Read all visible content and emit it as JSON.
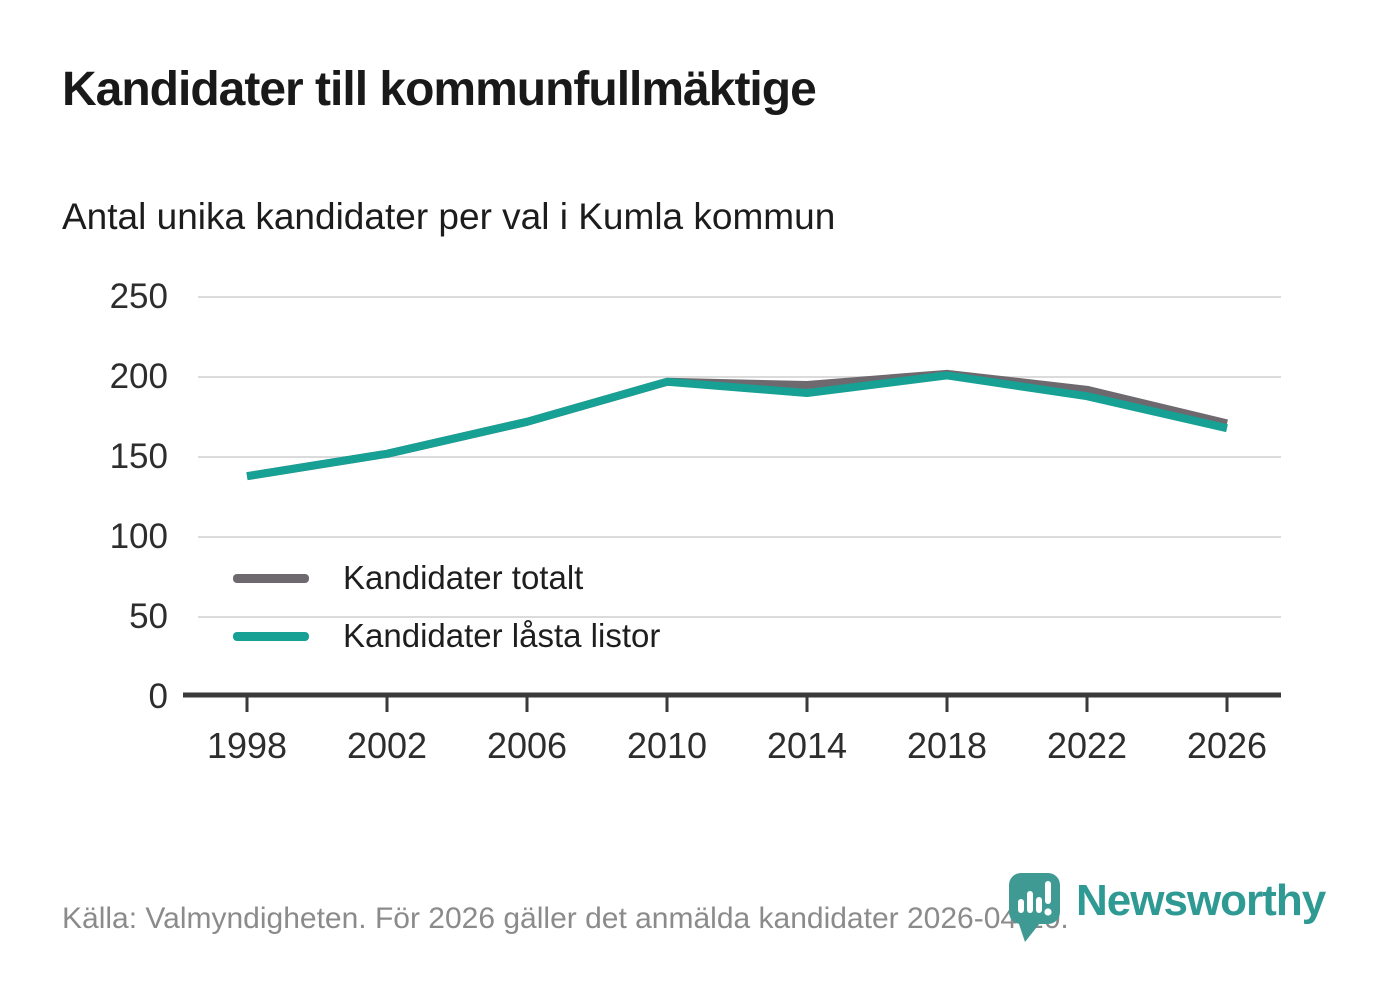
{
  "title": "Kandidater till kommunfullmäktige",
  "subtitle": "Antal unika kandidater per val i Kumla kommun",
  "source": "Källa: Valmyndigheten. För 2026 gäller det anmälda kandidater 2026-04-10.",
  "brand": {
    "name": "Newsworthy",
    "pin_color": "#3e9a93",
    "text_color": "#2e9a93"
  },
  "colors": {
    "accent_teal": "#17a094",
    "series_gray": "#6e696e",
    "gridline": "#dbdbdb",
    "axis": "#3a3a3a"
  },
  "chart_data": {
    "type": "line",
    "categories": [
      "1998",
      "2002",
      "2006",
      "2010",
      "2014",
      "2018",
      "2022",
      "2026"
    ],
    "series": [
      {
        "name": "Kandidater totalt",
        "color": "#6e696e",
        "values": [
          138,
          152,
          172,
          197,
          195,
          202,
          192,
          171
        ]
      },
      {
        "name": "Kandidater låsta listor",
        "color": "#17a094",
        "values": [
          138,
          152,
          172,
          197,
          190,
          201,
          188,
          168
        ]
      }
    ],
    "xlabel": "",
    "ylabel": "",
    "ylim": [
      0,
      250
    ],
    "yticks": [
      0,
      50,
      100,
      150,
      200,
      250
    ],
    "grid": true,
    "legend_position": "inside-bottom-left"
  }
}
